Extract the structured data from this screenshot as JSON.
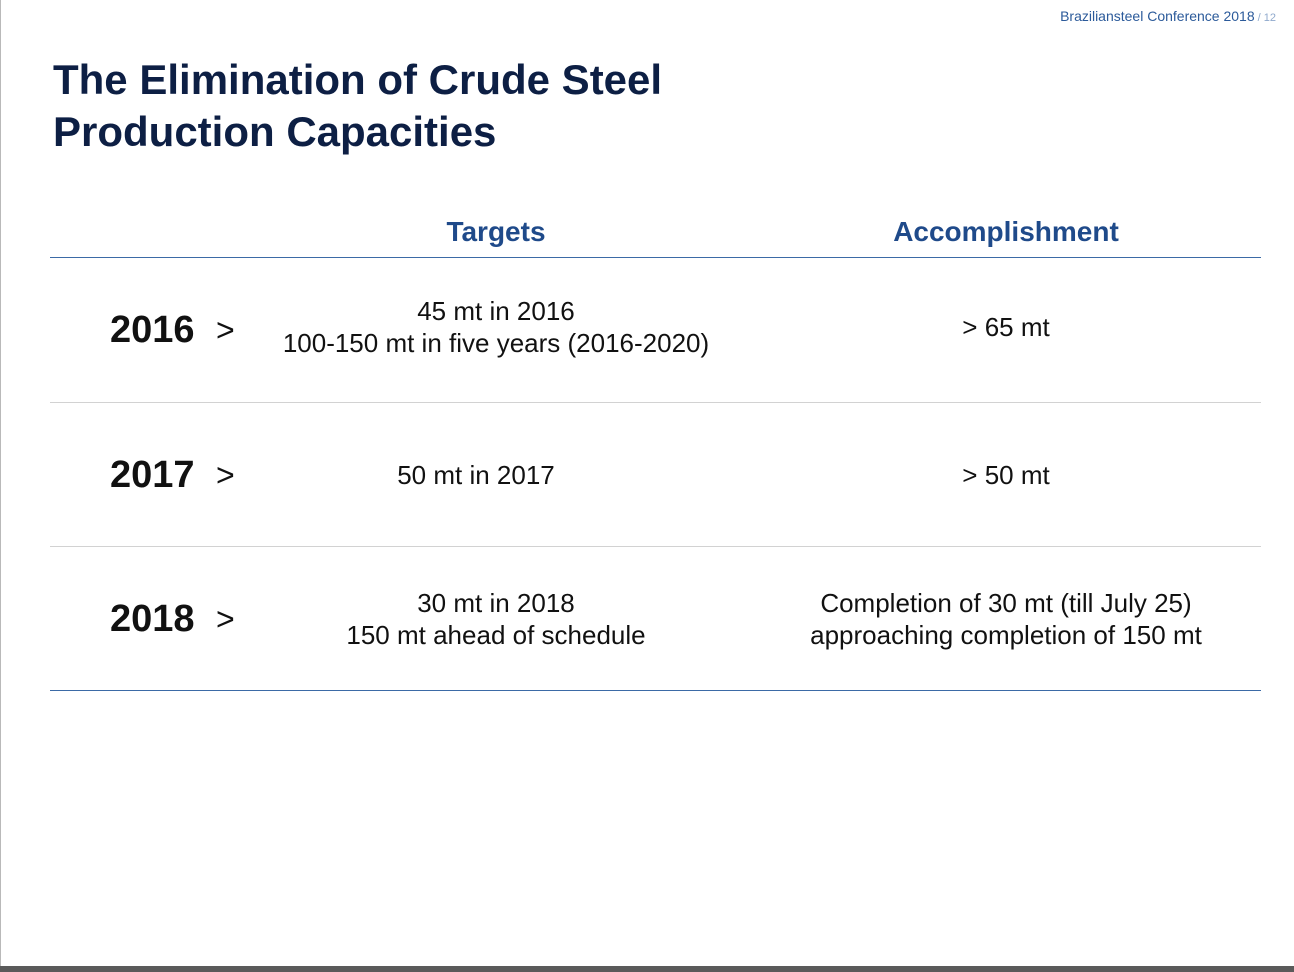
{
  "header": {
    "conference": "Braziliansteel Conference 2018",
    "page": "/ 12"
  },
  "title": {
    "line1": "The Elimination of Crude Steel",
    "line2": "Production Capacities"
  },
  "columns": {
    "targets": "Targets",
    "accomplishment": "Accomplishment"
  },
  "rows": [
    {
      "year": "2016",
      "arrow": ">",
      "target_lines": [
        "45 mt in 2016",
        "100-150 mt in five years (2016-2020)"
      ],
      "accomplishment_lines": [
        "> 65 mt"
      ]
    },
    {
      "year": "2017",
      "arrow": ">",
      "target_lines": [
        "50 mt in 2017"
      ],
      "accomplishment_lines": [
        "> 50 mt"
      ]
    },
    {
      "year": "2018",
      "arrow": ">",
      "target_lines": [
        "30 mt in 2018",
        "150 mt ahead of schedule"
      ],
      "accomplishment_lines": [
        "Completion of 30 mt (till July 25)",
        "approaching completion of 150 mt"
      ]
    }
  ]
}
